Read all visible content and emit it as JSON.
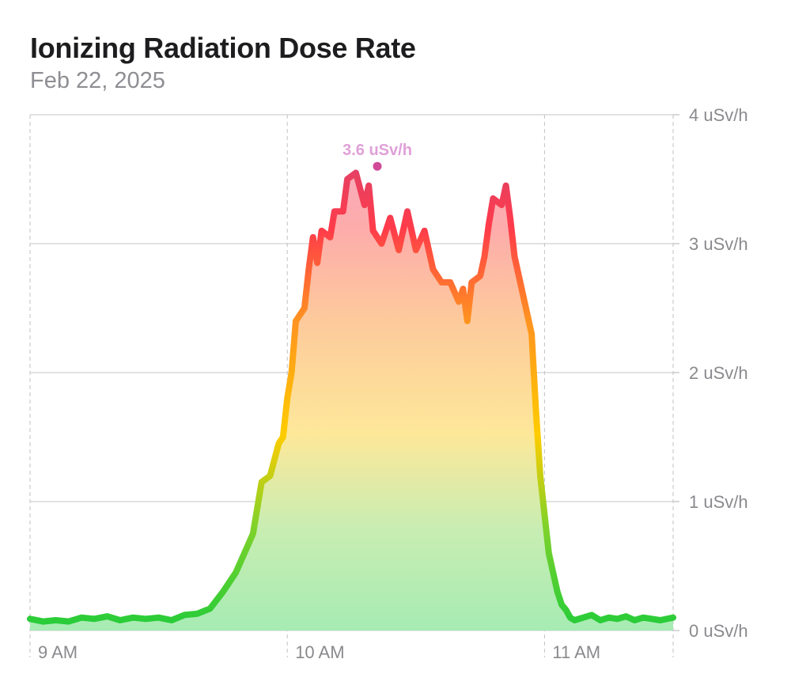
{
  "title": "Ionizing Radiation Dose Rate",
  "subtitle": "Feb 22, 2025",
  "colors": {
    "low": "#22cc3a",
    "mid": "#ffcc00",
    "high": "#ff3b4a",
    "peak": "#d04a98",
    "peak_label": "#e0a0d8"
  },
  "chart_data": {
    "type": "area",
    "title": "Ionizing Radiation Dose Rate",
    "subtitle": "Feb 22, 2025",
    "y_unit": "uSv/h",
    "ylim": [
      0,
      4
    ],
    "y_ticks": [
      {
        "value": 0,
        "label": "0 uSv/h"
      },
      {
        "value": 1,
        "label": "1 uSv/h"
      },
      {
        "value": 2,
        "label": "2 uSv/h"
      },
      {
        "value": 3,
        "label": "3 uSv/h"
      },
      {
        "value": 4,
        "label": "4 uSv/h"
      }
    ],
    "x_range": [
      "09:00",
      "11:30"
    ],
    "x_ticks": [
      {
        "time": "09:00",
        "label": "9 AM"
      },
      {
        "time": "10:00",
        "label": "10 AM"
      },
      {
        "time": "11:00",
        "label": "11 AM"
      }
    ],
    "grid": true,
    "peak_annotation": {
      "time": "10:21",
      "value": 3.6,
      "label": "3.6 uSv/h"
    },
    "series": [
      {
        "points": [
          [
            "09:00",
            0.09
          ],
          [
            "09:03",
            0.07
          ],
          [
            "09:06",
            0.08
          ],
          [
            "09:09",
            0.07
          ],
          [
            "09:12",
            0.1
          ],
          [
            "09:15",
            0.09
          ],
          [
            "09:18",
            0.11
          ],
          [
            "09:21",
            0.08
          ],
          [
            "09:24",
            0.1
          ],
          [
            "09:27",
            0.09
          ],
          [
            "09:30",
            0.1
          ],
          [
            "09:33",
            0.08
          ],
          [
            "09:36",
            0.12
          ],
          [
            "09:39",
            0.13
          ],
          [
            "09:42",
            0.17
          ],
          [
            "09:45",
            0.3
          ],
          [
            "09:48",
            0.45
          ],
          [
            "09:50",
            0.6
          ],
          [
            "09:52",
            0.75
          ],
          [
            "09:53",
            0.95
          ],
          [
            "09:54",
            1.15
          ],
          [
            "09:56",
            1.2
          ],
          [
            "09:58",
            1.45
          ],
          [
            "09:59",
            1.5
          ],
          [
            "10:00",
            1.8
          ],
          [
            "10:01",
            2.0
          ],
          [
            "10:02",
            2.4
          ],
          [
            "10:04",
            2.5
          ],
          [
            "10:05",
            2.8
          ],
          [
            "10:06",
            3.05
          ],
          [
            "10:07",
            2.85
          ],
          [
            "10:08",
            3.1
          ],
          [
            "10:10",
            3.05
          ],
          [
            "10:11",
            3.25
          ],
          [
            "10:13",
            3.25
          ],
          [
            "10:14",
            3.5
          ],
          [
            "10:16",
            3.55
          ],
          [
            "10:18",
            3.3
          ],
          [
            "10:19",
            3.45
          ],
          [
            "10:20",
            3.1
          ],
          [
            "10:22",
            3.0
          ],
          [
            "10:24",
            3.2
          ],
          [
            "10:26",
            2.95
          ],
          [
            "10:28",
            3.25
          ],
          [
            "10:30",
            2.95
          ],
          [
            "10:32",
            3.1
          ],
          [
            "10:34",
            2.8
          ],
          [
            "10:36",
            2.7
          ],
          [
            "10:38",
            2.7
          ],
          [
            "10:40",
            2.55
          ],
          [
            "10:41",
            2.65
          ],
          [
            "10:42",
            2.4
          ],
          [
            "10:43",
            2.7
          ],
          [
            "10:45",
            2.75
          ],
          [
            "10:46",
            2.9
          ],
          [
            "10:47",
            3.15
          ],
          [
            "10:48",
            3.35
          ],
          [
            "10:50",
            3.3
          ],
          [
            "10:51",
            3.45
          ],
          [
            "10:52",
            3.2
          ],
          [
            "10:53",
            2.9
          ],
          [
            "10:55",
            2.6
          ],
          [
            "10:57",
            2.3
          ],
          [
            "10:58",
            1.7
          ],
          [
            "10:59",
            1.2
          ],
          [
            "11:00",
            0.9
          ],
          [
            "11:01",
            0.6
          ],
          [
            "11:02",
            0.45
          ],
          [
            "11:03",
            0.3
          ],
          [
            "11:04",
            0.2
          ],
          [
            "11:05",
            0.16
          ],
          [
            "11:06",
            0.1
          ],
          [
            "11:07",
            0.08
          ],
          [
            "11:09",
            0.1
          ],
          [
            "11:11",
            0.12
          ],
          [
            "11:13",
            0.08
          ],
          [
            "11:15",
            0.1
          ],
          [
            "11:17",
            0.09
          ],
          [
            "11:19",
            0.11
          ],
          [
            "11:21",
            0.08
          ],
          [
            "11:23",
            0.1
          ],
          [
            "11:25",
            0.09
          ],
          [
            "11:27",
            0.08
          ],
          [
            "11:30",
            0.1
          ]
        ]
      }
    ]
  }
}
